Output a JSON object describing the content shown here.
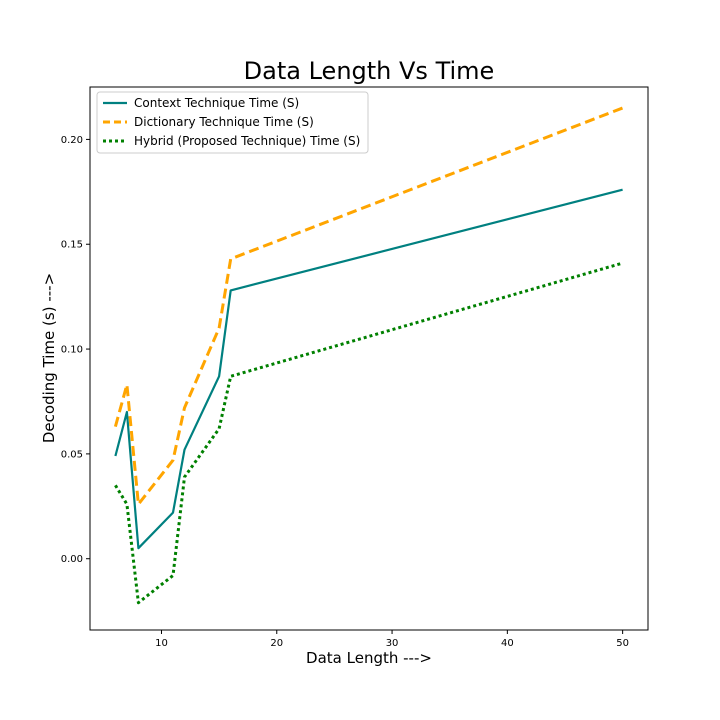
{
  "chart_data": {
    "type": "line",
    "title": "Data Length Vs Time",
    "xlabel": "Data Length --->",
    "ylabel": "Decoding Time (s) --->",
    "xlim": [
      3.8,
      52.2
    ],
    "ylim": [
      -0.034,
      0.225
    ],
    "xticks": [
      10,
      20,
      30,
      40,
      50
    ],
    "yticks": [
      0.0,
      0.05,
      0.1,
      0.15,
      0.2
    ],
    "xtick_labels": [
      "10",
      "20",
      "30",
      "40",
      "50"
    ],
    "ytick_labels": [
      "0.00",
      "0.05",
      "0.10",
      "0.15",
      "0.20"
    ],
    "grid": false,
    "legend_position": "top-left",
    "x": [
      6,
      7,
      8,
      11,
      12,
      15,
      16,
      50
    ],
    "series": [
      {
        "name": "Context Technique Time (S)",
        "values": [
          0.049,
          0.07,
          0.005,
          0.022,
          0.052,
          0.087,
          0.128,
          0.176
        ],
        "color": "#008080",
        "style": "solid"
      },
      {
        "name": "Dictionary Technique Time (S)",
        "values": [
          0.063,
          0.083,
          0.026,
          0.047,
          0.072,
          0.11,
          0.143,
          0.215
        ],
        "color": "#FFA500",
        "style": "dashed"
      },
      {
        "name": "Hybrid (Proposed Technique) Time (S)",
        "values": [
          0.035,
          0.026,
          -0.021,
          -0.008,
          0.039,
          0.062,
          0.087,
          0.141
        ],
        "color": "#008000",
        "style": "dotted"
      }
    ]
  }
}
